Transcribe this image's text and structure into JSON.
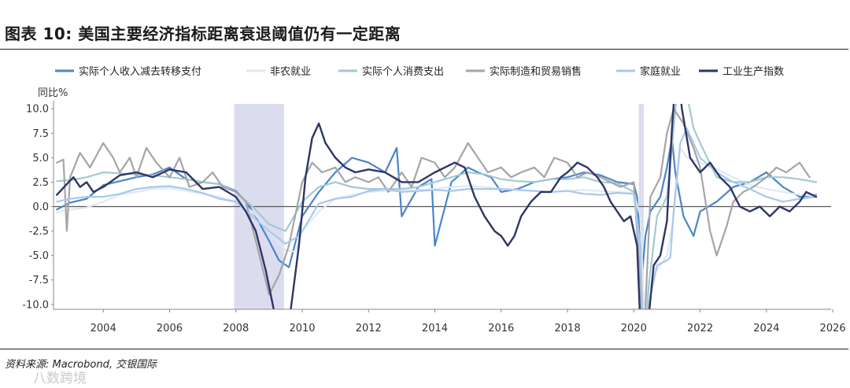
{
  "header": {
    "title": "图表 10: 美国主要经济指标距离衰退阈值仍有一定距离"
  },
  "footer": {
    "source": "资料来源: Macrobond, 交银国际",
    "watermark": "八数跨境"
  },
  "colors": {
    "real_income_ex_transfers": "#4a86c8",
    "nonfarm_payrolls": "#dfe9f2",
    "real_pce": "#a3c9d2",
    "real_mfg_trade_sales": "#a5a5a5",
    "household_employment": "#a9c8ec",
    "industrial_production": "#2e3568",
    "recession_shade": "#dcdcef",
    "zero_line": "#555555"
  },
  "chart_data": {
    "type": "line",
    "ylabel": "同比%",
    "ylim": [
      -10.5,
      10.5
    ],
    "yticks": [
      10.0,
      7.5,
      5.0,
      2.5,
      0.0,
      -2.5,
      -5.0,
      -7.5,
      -10.0
    ],
    "ytick_labels": [
      "10.0",
      "7.5",
      "5.0",
      "2.5",
      "0.0",
      "-2.5",
      "-5.0",
      "-7.5",
      "-10.0"
    ],
    "xlim": [
      2002.5,
      2025.95
    ],
    "xticks": [
      2004,
      2006,
      2008,
      2010,
      2012,
      2014,
      2016,
      2018,
      2020,
      2022,
      2024,
      2026
    ],
    "xtick_labels": [
      "2004",
      "2006",
      "2008",
      "2010",
      "2012",
      "2014",
      "2016",
      "2018",
      "2020",
      "2022",
      "2024",
      "2026"
    ],
    "recessions": [
      [
        2007.95,
        2009.45
      ],
      [
        2020.15,
        2020.3
      ]
    ],
    "legend_position": "top",
    "series": [
      {
        "name": "实际个人收入减去转移支付",
        "color": "#4a86c8",
        "width": 2.2,
        "x": [
          2002.6,
          2003.0,
          2003.5,
          2004.0,
          2004.5,
          2005.0,
          2005.5,
          2006.0,
          2006.5,
          2007.0,
          2007.5,
          2008.0,
          2008.3,
          2008.6,
          2009.0,
          2009.3,
          2009.6,
          2010.0,
          2010.5,
          2011.0,
          2011.5,
          2012.0,
          2012.5,
          2012.85,
          2013.0,
          2013.5,
          2013.9,
          2014.0,
          2014.5,
          2015.0,
          2015.3,
          2015.7,
          2016.0,
          2016.5,
          2017.0,
          2017.5,
          2018.0,
          2018.5,
          2019.0,
          2019.5,
          2020.0,
          2020.1,
          2020.25,
          2020.35,
          2020.5,
          2020.8,
          2021.0,
          2021.15,
          2021.25,
          2021.5,
          2021.8,
          2022.0,
          2022.5,
          2023.0,
          2023.5,
          2024.0,
          2024.5,
          2025.0,
          2025.5
        ],
        "y": [
          -0.3,
          0.4,
          0.8,
          2.2,
          2.6,
          3.0,
          3.3,
          4.0,
          2.8,
          2.5,
          2.3,
          1.6,
          0.5,
          -1.0,
          -3.5,
          -5.5,
          -6.2,
          -1.0,
          1.5,
          3.5,
          5.0,
          4.5,
          3.5,
          6.0,
          -1.0,
          2.0,
          2.8,
          -4.0,
          2.5,
          4.0,
          3.5,
          3.0,
          1.5,
          1.8,
          2.5,
          2.8,
          3.0,
          3.5,
          3.2,
          2.5,
          2.3,
          1.0,
          -7.0,
          -3.0,
          -0.5,
          1.0,
          4.0,
          7.0,
          3.5,
          -1.0,
          -3.0,
          -0.5,
          0.5,
          2.0,
          2.5,
          3.5,
          2.0,
          1.0,
          1.2
        ]
      },
      {
        "name": "非农就业",
        "color": "#dfe9f2",
        "width": 2.2,
        "x": [
          2002.6,
          2003.0,
          2003.5,
          2004.0,
          2004.5,
          2005.0,
          2005.5,
          2006.0,
          2006.5,
          2007.0,
          2007.5,
          2008.0,
          2008.5,
          2009.0,
          2009.5,
          2009.8,
          2010.0,
          2010.5,
          2011.0,
          2011.5,
          2012.0,
          2012.5,
          2013.0,
          2013.5,
          2014.0,
          2014.5,
          2015.0,
          2015.5,
          2016.0,
          2016.5,
          2017.0,
          2017.5,
          2018.0,
          2018.5,
          2019.0,
          2019.5,
          2020.0,
          2020.2,
          2020.3,
          2020.4,
          2020.6,
          2021.0,
          2021.2,
          2021.4,
          2021.6,
          2022.0,
          2022.5,
          2023.0,
          2023.5,
          2024.0,
          2024.5,
          2025.0,
          2025.5
        ],
        "y": [
          -0.6,
          -0.3,
          -0.1,
          0.5,
          1.2,
          1.5,
          1.8,
          1.9,
          1.6,
          1.3,
          1.0,
          0.5,
          -0.5,
          -2.5,
          -4.5,
          -4.6,
          -2.5,
          -0.5,
          0.8,
          1.2,
          1.5,
          1.6,
          1.6,
          1.7,
          1.8,
          2.0,
          2.1,
          2.0,
          1.8,
          1.7,
          1.6,
          1.5,
          1.6,
          1.7,
          1.6,
          1.5,
          1.4,
          -1.0,
          -10.0,
          -9.0,
          -7.0,
          -5.0,
          -1.0,
          6.0,
          5.0,
          4.5,
          3.8,
          3.0,
          2.2,
          1.8,
          1.5,
          1.2,
          1.1
        ]
      },
      {
        "name": "实际个人消费支出",
        "color": "#a3c9d2",
        "width": 2.2,
        "x": [
          2002.6,
          2003.0,
          2003.5,
          2004.0,
          2004.5,
          2005.0,
          2005.5,
          2006.0,
          2006.5,
          2007.0,
          2007.5,
          2008.0,
          2008.5,
          2009.0,
          2009.5,
          2010.0,
          2010.5,
          2011.0,
          2011.5,
          2012.0,
          2012.5,
          2013.0,
          2013.5,
          2014.0,
          2014.5,
          2015.0,
          2015.5,
          2016.0,
          2016.5,
          2017.0,
          2017.5,
          2018.0,
          2018.5,
          2019.0,
          2019.5,
          2020.0,
          2020.2,
          2020.3,
          2020.45,
          2020.7,
          2021.0,
          2021.2,
          2021.4,
          2021.8,
          2022.0,
          2022.5,
          2023.0,
          2023.5,
          2024.0,
          2024.5,
          2025.0,
          2025.5
        ],
        "y": [
          2.6,
          2.7,
          3.0,
          3.5,
          3.4,
          3.3,
          3.2,
          3.0,
          2.8,
          2.5,
          2.3,
          1.5,
          0.0,
          -1.8,
          -2.5,
          0.5,
          2.0,
          2.5,
          2.0,
          1.8,
          1.8,
          1.8,
          2.0,
          2.5,
          3.0,
          3.5,
          3.3,
          2.8,
          2.6,
          2.5,
          2.8,
          2.8,
          3.0,
          2.5,
          2.4,
          1.5,
          -4.0,
          -16.0,
          -8.0,
          -1.0,
          1.0,
          8.0,
          15.0,
          8.0,
          6.5,
          3.0,
          2.5,
          2.5,
          3.0,
          3.0,
          2.8,
          2.5
        ]
      },
      {
        "name": "实际制造和贸易销售",
        "color": "#a5a5a5",
        "width": 2.2,
        "x": [
          2002.6,
          2002.8,
          2002.9,
          2003.0,
          2003.3,
          2003.6,
          2004.0,
          2004.3,
          2004.5,
          2004.8,
          2005.0,
          2005.3,
          2005.6,
          2006.0,
          2006.3,
          2006.6,
          2007.0,
          2007.3,
          2007.6,
          2008.0,
          2008.3,
          2008.6,
          2009.0,
          2009.3,
          2009.6,
          2010.0,
          2010.3,
          2010.6,
          2011.0,
          2011.3,
          2011.6,
          2012.0,
          2012.3,
          2012.6,
          2013.0,
          2013.3,
          2013.6,
          2014.0,
          2014.3,
          2014.6,
          2015.0,
          2015.3,
          2015.6,
          2016.0,
          2016.3,
          2016.6,
          2017.0,
          2017.3,
          2017.6,
          2018.0,
          2018.3,
          2018.6,
          2019.0,
          2019.3,
          2019.6,
          2020.0,
          2020.2,
          2020.3,
          2020.5,
          2020.8,
          2021.0,
          2021.2,
          2021.5,
          2021.8,
          2022.0,
          2022.3,
          2022.5,
          2022.8,
          2023.0,
          2023.3,
          2023.6,
          2024.0,
          2024.3,
          2024.6,
          2025.0,
          2025.3
        ],
        "y": [
          4.5,
          4.8,
          -2.5,
          3.0,
          5.5,
          4.0,
          6.5,
          5.0,
          3.5,
          5.0,
          3.0,
          6.0,
          4.5,
          3.0,
          5.0,
          2.0,
          2.5,
          3.5,
          2.0,
          1.5,
          0.5,
          -3.5,
          -9.0,
          -7.0,
          -4.0,
          2.5,
          4.5,
          3.5,
          4.0,
          2.5,
          3.0,
          2.5,
          3.0,
          1.5,
          3.5,
          2.0,
          5.0,
          4.5,
          3.0,
          4.0,
          6.5,
          5.0,
          3.5,
          4.0,
          3.0,
          3.5,
          4.0,
          3.0,
          5.0,
          4.5,
          3.0,
          3.5,
          3.0,
          2.5,
          2.0,
          2.5,
          -8.0,
          -14.0,
          1.0,
          3.0,
          7.5,
          10.0,
          8.5,
          6.0,
          4.0,
          -2.5,
          -5.0,
          -2.0,
          0.5,
          1.5,
          2.0,
          3.0,
          4.0,
          3.5,
          4.5,
          3.0
        ]
      },
      {
        "name": "家庭就业",
        "color": "#a9c8ec",
        "width": 2.2,
        "x": [
          2002.6,
          2003.0,
          2003.5,
          2004.0,
          2004.5,
          2005.0,
          2005.5,
          2006.0,
          2006.5,
          2007.0,
          2007.5,
          2008.0,
          2008.5,
          2009.0,
          2009.5,
          2009.9,
          2010.0,
          2010.5,
          2011.0,
          2011.5,
          2012.0,
          2012.5,
          2013.0,
          2013.5,
          2014.0,
          2014.5,
          2015.0,
          2015.5,
          2016.0,
          2016.5,
          2017.0,
          2017.5,
          2018.0,
          2018.5,
          2019.0,
          2019.5,
          2020.0,
          2020.2,
          2020.3,
          2020.45,
          2020.7,
          2021.0,
          2021.1,
          2021.2,
          2021.4,
          2021.6,
          2022.0,
          2022.5,
          2023.0,
          2023.5,
          2024.0,
          2024.5,
          2025.0,
          2025.5
        ],
        "y": [
          0.5,
          0.8,
          1.0,
          1.0,
          1.3,
          1.8,
          2.0,
          2.1,
          1.8,
          1.4,
          0.8,
          0.5,
          -1.0,
          -2.5,
          -3.8,
          -3.0,
          -2.5,
          0.3,
          0.8,
          1.0,
          1.6,
          1.8,
          1.5,
          1.6,
          1.7,
          1.6,
          1.8,
          1.8,
          1.8,
          1.7,
          1.6,
          1.5,
          1.6,
          1.3,
          1.2,
          1.4,
          1.3,
          -5.0,
          -14.0,
          -10.0,
          -6.0,
          -5.5,
          -5.2,
          -0.5,
          6.5,
          8.0,
          5.0,
          3.5,
          2.5,
          1.8,
          1.0,
          0.5,
          0.8,
          1.0
        ]
      },
      {
        "name": "工业生产指数",
        "color": "#2e3568",
        "width": 2.4,
        "x": [
          2002.6,
          2002.9,
          2003.1,
          2003.3,
          2003.5,
          2003.7,
          2004.0,
          2004.5,
          2005.0,
          2005.5,
          2006.0,
          2006.5,
          2007.0,
          2007.5,
          2008.0,
          2008.3,
          2008.6,
          2008.9,
          2009.2,
          2009.4,
          2009.6,
          2009.9,
          2010.1,
          2010.3,
          2010.5,
          2010.7,
          2011.0,
          2011.3,
          2011.6,
          2012.0,
          2012.5,
          2013.0,
          2013.5,
          2014.0,
          2014.3,
          2014.6,
          2014.9,
          2015.2,
          2015.5,
          2015.8,
          2016.0,
          2016.2,
          2016.4,
          2016.6,
          2016.9,
          2017.2,
          2017.5,
          2017.8,
          2018.0,
          2018.3,
          2018.6,
          2018.9,
          2019.1,
          2019.3,
          2019.5,
          2019.7,
          2019.9,
          2020.1,
          2020.25,
          2020.4,
          2020.6,
          2020.8,
          2021.0,
          2021.15,
          2021.3,
          2021.45,
          2021.7,
          2022.0,
          2022.3,
          2022.6,
          2022.9,
          2023.2,
          2023.5,
          2023.8,
          2024.1,
          2024.4,
          2024.7,
          2025.0,
          2025.2,
          2025.5
        ],
        "y": [
          1.2,
          2.3,
          3.0,
          2.0,
          2.5,
          1.5,
          2.0,
          3.2,
          3.5,
          3.0,
          3.8,
          3.5,
          1.8,
          2.0,
          1.0,
          -0.5,
          -2.5,
          -6.5,
          -11.5,
          -13.0,
          -12.0,
          -4.0,
          3.0,
          7.0,
          8.5,
          6.5,
          5.0,
          4.0,
          3.5,
          3.8,
          3.5,
          2.5,
          2.5,
          3.5,
          4.0,
          4.5,
          4.0,
          1.0,
          -1.0,
          -2.5,
          -3.0,
          -4.0,
          -3.0,
          -1.0,
          0.5,
          1.5,
          1.5,
          3.0,
          3.5,
          4.5,
          4.0,
          3.0,
          2.0,
          0.5,
          -0.5,
          -1.5,
          -1.0,
          -4.0,
          -16.5,
          -13.0,
          -6.0,
          -5.0,
          -1.5,
          8.0,
          15.0,
          10.0,
          5.0,
          3.5,
          4.5,
          3.0,
          2.0,
          0.0,
          -0.5,
          0.0,
          -1.0,
          0.0,
          -0.5,
          0.5,
          1.5,
          1.0
        ]
      }
    ]
  }
}
